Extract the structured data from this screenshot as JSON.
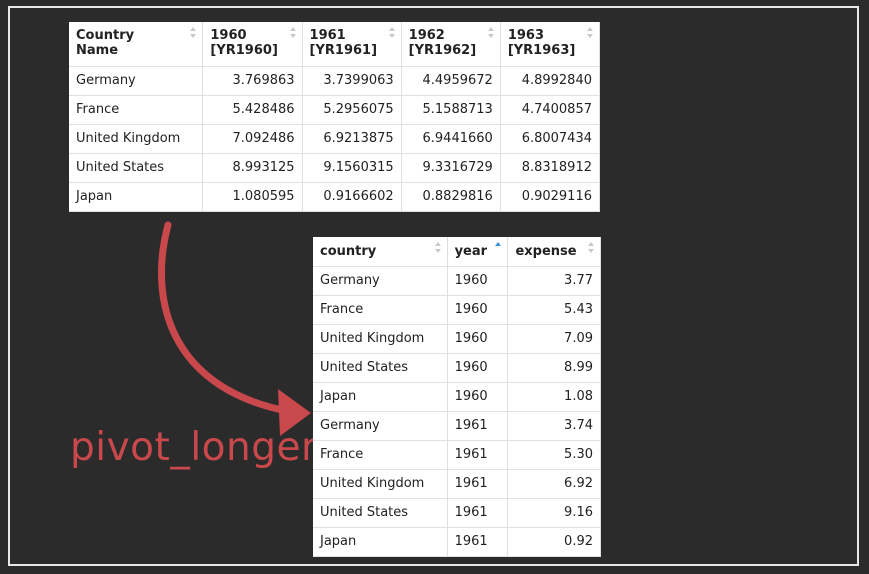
{
  "wide_table": {
    "columns": [
      {
        "label_line1": "Country",
        "label_line2": "Name"
      },
      {
        "label_line1": "1960",
        "label_line2": "[YR1960]"
      },
      {
        "label_line1": "1961",
        "label_line2": "[YR1961]"
      },
      {
        "label_line1": "1962",
        "label_line2": "[YR1962]"
      },
      {
        "label_line1": "1963",
        "label_line2": "[YR1963]"
      }
    ],
    "rows": [
      [
        "Germany",
        "3.769863",
        "3.7399063",
        "4.4959672",
        "4.8992840"
      ],
      [
        "France",
        "5.428486",
        "5.2956075",
        "5.1588713",
        "4.7400857"
      ],
      [
        "United Kingdom",
        "7.092486",
        "6.9213875",
        "6.9441660",
        "6.8007434"
      ],
      [
        "United States",
        "8.993125",
        "9.1560315",
        "9.3316729",
        "8.8318912"
      ],
      [
        "Japan",
        "1.080595",
        "0.9166602",
        "0.8829816",
        "0.9029116"
      ]
    ]
  },
  "long_table": {
    "columns": [
      "country",
      "year",
      "expense"
    ],
    "sorted_column": "year",
    "rows": [
      [
        "Germany",
        "1960",
        "3.77"
      ],
      [
        "France",
        "1960",
        "5.43"
      ],
      [
        "United Kingdom",
        "1960",
        "7.09"
      ],
      [
        "United States",
        "1960",
        "8.99"
      ],
      [
        "Japan",
        "1960",
        "1.08"
      ],
      [
        "Germany",
        "1961",
        "3.74"
      ],
      [
        "France",
        "1961",
        "5.30"
      ],
      [
        "United Kingdom",
        "1961",
        "6.92"
      ],
      [
        "United States",
        "1961",
        "9.16"
      ],
      [
        "Japan",
        "1961",
        "0.92"
      ]
    ]
  },
  "transform_label": "pivot_longer",
  "colors": {
    "background": "#2b2b2b",
    "arrow": "#c8484b",
    "sort_active": "#3b8fe0"
  }
}
